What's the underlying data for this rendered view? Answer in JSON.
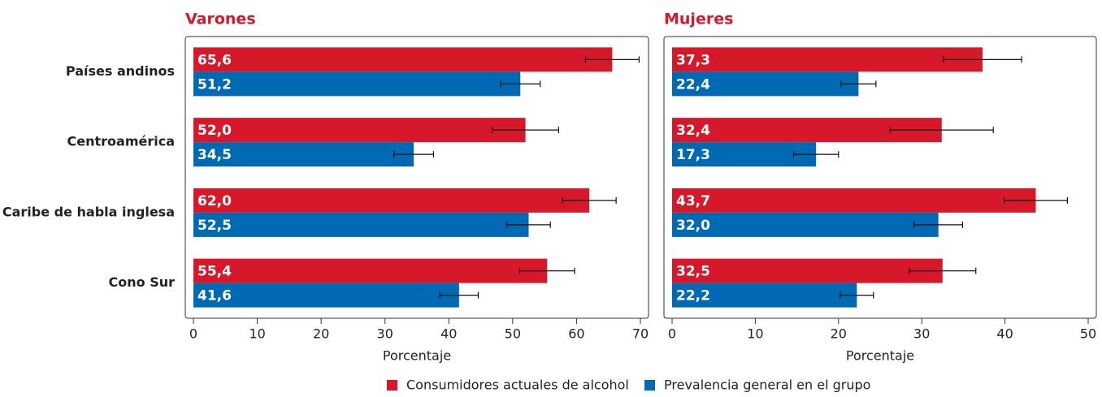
{
  "legend": [
    {
      "name": "Consumidores actuales de alcohol",
      "color": "#d7182a"
    },
    {
      "name": "Prevalencia general en el grupo",
      "color": "#0069b4"
    }
  ],
  "chart_data": [
    {
      "type": "bar",
      "title": "Varones",
      "xlabel": "Porcentaje",
      "categories": [
        "Países andinos",
        "Centroamérica",
        "Caribe de habla inglesa",
        "Cono Sur"
      ],
      "xlim": [
        0,
        70
      ],
      "xticks": [
        0,
        10,
        20,
        30,
        40,
        50,
        60,
        70
      ],
      "series": [
        {
          "values": [
            65.6,
            52.0,
            62.0,
            55.4
          ],
          "value_labels": [
            "65,6",
            "52,0",
            "62,0",
            "55,4"
          ],
          "errors": [
            4.2,
            5.2,
            4.2,
            4.3
          ]
        },
        {
          "values": [
            51.2,
            34.5,
            52.5,
            41.6
          ],
          "value_labels": [
            "51,2",
            "34,5",
            "52,5",
            "41,6"
          ],
          "errors": [
            3.1,
            3.1,
            3.4,
            3.0
          ]
        }
      ]
    },
    {
      "type": "bar",
      "title": "Mujeres",
      "xlabel": "Porcentaje",
      "xlim": [
        0,
        50
      ],
      "xticks": [
        0,
        10,
        20,
        30,
        40,
        50
      ],
      "series": [
        {
          "values": [
            37.3,
            32.4,
            43.7,
            32.5
          ],
          "value_labels": [
            "37,3",
            "32,4",
            "43,7",
            "32,5"
          ],
          "errors": [
            4.7,
            6.2,
            3.8,
            4.0
          ]
        },
        {
          "values": [
            22.4,
            17.3,
            32.0,
            22.2
          ],
          "value_labels": [
            "22,4",
            "17,3",
            "32,0",
            "22,2"
          ],
          "errors": [
            2.1,
            2.7,
            2.9,
            2.0
          ]
        }
      ]
    }
  ]
}
